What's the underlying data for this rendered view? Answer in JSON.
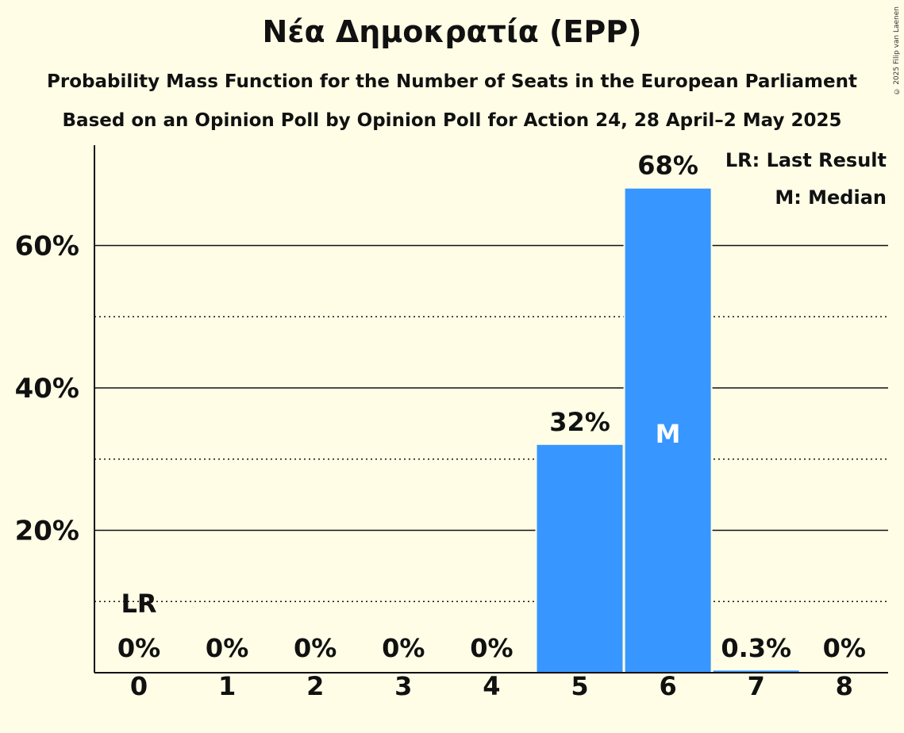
{
  "title": "Νέα Δημοκρατία (EPP)",
  "subtitle_line1": "Probability Mass Function for the Number of Seats in the European Parliament",
  "subtitle_line2": "Based on an Opinion Poll by Opinion Poll for Action 24, 28 April–2 May 2025",
  "copyright": "© 2025 Filip van Laenen",
  "legend": {
    "last_result": "LR: Last Result",
    "median": "M: Median"
  },
  "colors": {
    "background": "#FFFDE6",
    "bar": "#3796FF",
    "text": "#111111"
  },
  "chart_data": {
    "type": "bar",
    "categories": [
      "0",
      "1",
      "2",
      "3",
      "4",
      "5",
      "6",
      "7",
      "8"
    ],
    "values": [
      0,
      0,
      0,
      0,
      0,
      32,
      68,
      0.3,
      0
    ],
    "value_labels": [
      "0%",
      "0%",
      "0%",
      "0%",
      "0%",
      "32%",
      "68%",
      "0.3%",
      "0%"
    ],
    "ylim": [
      0,
      74
    ],
    "y_ticks": [
      {
        "value": 20,
        "label": "20%"
      },
      {
        "value": 40,
        "label": "40%"
      },
      {
        "value": 60,
        "label": "60%"
      }
    ],
    "dotted_gridlines": [
      10,
      30,
      50
    ],
    "last_result": {
      "category": "0",
      "label": "LR"
    },
    "median": {
      "category": "6",
      "label": "M"
    },
    "legend_position": "top-right",
    "grid": true
  }
}
